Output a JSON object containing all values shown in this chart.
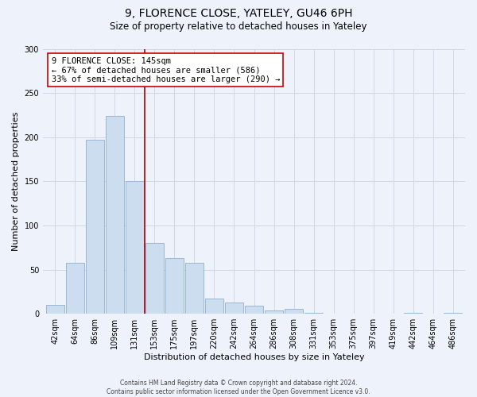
{
  "title": "9, FLORENCE CLOSE, YATELEY, GU46 6PH",
  "subtitle": "Size of property relative to detached houses in Yateley",
  "xlabel": "Distribution of detached houses by size in Yateley",
  "ylabel": "Number of detached properties",
  "bar_labels": [
    "42sqm",
    "64sqm",
    "86sqm",
    "109sqm",
    "131sqm",
    "153sqm",
    "175sqm",
    "197sqm",
    "220sqm",
    "242sqm",
    "264sqm",
    "286sqm",
    "308sqm",
    "331sqm",
    "353sqm",
    "375sqm",
    "397sqm",
    "419sqm",
    "442sqm",
    "464sqm",
    "486sqm"
  ],
  "bar_values": [
    10,
    58,
    197,
    224,
    150,
    80,
    63,
    58,
    17,
    13,
    9,
    4,
    6,
    1,
    0,
    0,
    0,
    0,
    1,
    0,
    1
  ],
  "bar_color": "#ccddf0",
  "bar_edge_color": "#90afd0",
  "vline_x": 4.5,
  "property_line_label": "9 FLORENCE CLOSE: 145sqm",
  "annotation_smaller": "← 67% of detached houses are smaller (586)",
  "annotation_larger": "33% of semi-detached houses are larger (290) →",
  "vline_color": "#aa0000",
  "annotation_box_facecolor": "#ffffff",
  "annotation_box_edgecolor": "#cc0000",
  "ylim": [
    0,
    300
  ],
  "yticks": [
    0,
    50,
    100,
    150,
    200,
    250,
    300
  ],
  "grid_color": "#d0d8e8",
  "background_color": "#eef2fa",
  "footer_line1": "Contains HM Land Registry data © Crown copyright and database right 2024.",
  "footer_line2": "Contains public sector information licensed under the Open Government Licence v3.0.",
  "title_fontsize": 10,
  "subtitle_fontsize": 8.5,
  "axis_label_fontsize": 8,
  "tick_fontsize": 7,
  "annotation_fontsize": 7.5,
  "footer_fontsize": 5.5
}
